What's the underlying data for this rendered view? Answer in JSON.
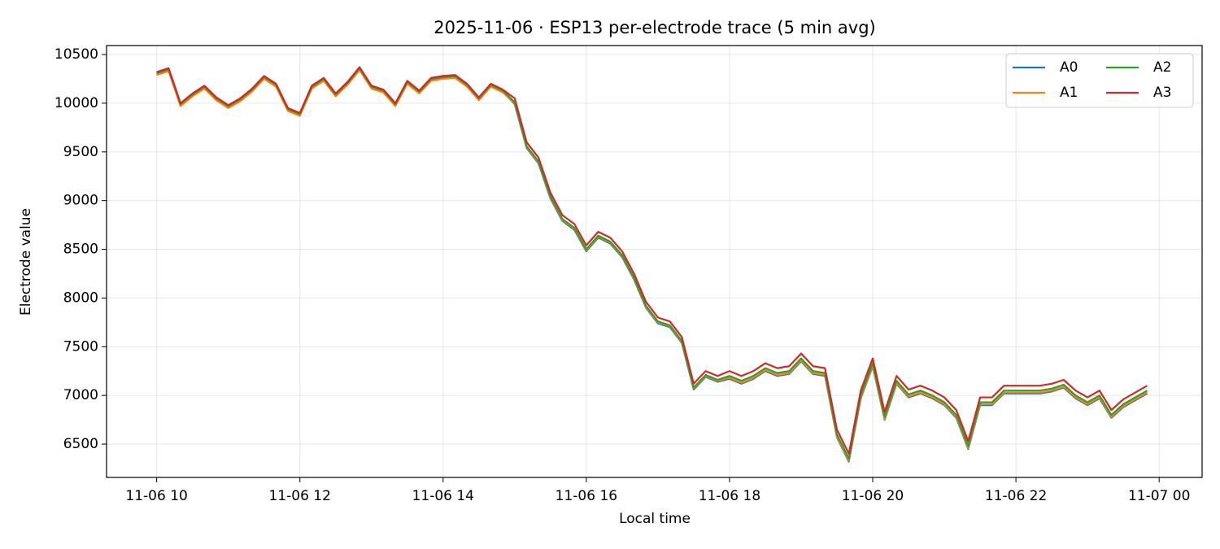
{
  "chart_data": {
    "type": "line",
    "title": "2025-11-06 · ESP13 per-electrode trace (5 min avg)",
    "x_label": "Local time",
    "y_label": "Electrode value",
    "x": [
      "11-06 10:00",
      "11-06 10:10",
      "11-06 10:20",
      "11-06 10:30",
      "11-06 10:40",
      "11-06 10:50",
      "11-06 11:00",
      "11-06 11:10",
      "11-06 11:20",
      "11-06 11:30",
      "11-06 11:40",
      "11-06 11:50",
      "11-06 12:00",
      "11-06 12:10",
      "11-06 12:20",
      "11-06 12:30",
      "11-06 12:40",
      "11-06 12:50",
      "11-06 13:00",
      "11-06 13:10",
      "11-06 13:20",
      "11-06 13:30",
      "11-06 13:40",
      "11-06 13:50",
      "11-06 14:00",
      "11-06 14:10",
      "11-06 14:20",
      "11-06 14:30",
      "11-06 14:40",
      "11-06 14:50",
      "11-06 15:00",
      "11-06 15:10",
      "11-06 15:20",
      "11-06 15:30",
      "11-06 15:40",
      "11-06 15:50",
      "11-06 16:00",
      "11-06 16:10",
      "11-06 16:20",
      "11-06 16:30",
      "11-06 16:40",
      "11-06 16:50",
      "11-06 17:00",
      "11-06 17:10",
      "11-06 17:20",
      "11-06 17:30",
      "11-06 17:40",
      "11-06 17:50",
      "11-06 18:00",
      "11-06 18:10",
      "11-06 18:20",
      "11-06 18:30",
      "11-06 18:40",
      "11-06 18:50",
      "11-06 19:00",
      "11-06 19:10",
      "11-06 19:20",
      "11-06 19:30",
      "11-06 19:40",
      "11-06 19:50",
      "11-06 20:00",
      "11-06 20:10",
      "11-06 20:20",
      "11-06 20:30",
      "11-06 20:40",
      "11-06 20:50",
      "11-06 21:00",
      "11-06 21:10",
      "11-06 21:20",
      "11-06 21:30",
      "11-06 21:40",
      "11-06 21:50",
      "11-06 22:00",
      "11-06 22:10",
      "11-06 22:20",
      "11-06 22:30",
      "11-06 22:40",
      "11-06 22:50",
      "11-06 23:00",
      "11-06 23:10",
      "11-06 23:20",
      "11-06 23:30",
      "11-06 23:40",
      "11-06 23:50"
    ],
    "series": [
      {
        "name": "A0",
        "color": "#1f77b4",
        "values": [
          10300,
          10340,
          9980,
          10080,
          10160,
          10040,
          9960,
          10030,
          10130,
          10260,
          10180,
          9930,
          9880,
          10160,
          10240,
          10080,
          10200,
          10350,
          10160,
          10120,
          9980,
          10210,
          10110,
          10240,
          10260,
          10270,
          10180,
          10040,
          10180,
          10120,
          9990,
          9540,
          9380,
          9020,
          8790,
          8700,
          8480,
          8620,
          8560,
          8420,
          8190,
          7900,
          7740,
          7700,
          7540,
          7060,
          7190,
          7140,
          7170,
          7120,
          7170,
          7250,
          7200,
          7220,
          7350,
          7220,
          7200,
          6570,
          6320,
          6970,
          7300,
          6750,
          7120,
          6980,
          7020,
          6970,
          6900,
          6770,
          6450,
          6900,
          6900,
          7020,
          7020,
          7020,
          7020,
          7040,
          7080,
          6970,
          6900,
          6970,
          6770,
          6880,
          6950,
          7020
        ]
      },
      {
        "name": "A1",
        "color": "#ff7f0e",
        "values": [
          10290,
          10330,
          9970,
          10070,
          10150,
          10030,
          9950,
          10020,
          10120,
          10250,
          10170,
          9920,
          9870,
          10150,
          10230,
          10070,
          10190,
          10340,
          10150,
          10110,
          9970,
          10200,
          10100,
          10230,
          10250,
          10260,
          10170,
          10030,
          10170,
          10110,
          10000,
          9550,
          9390,
          9030,
          8800,
          8710,
          8490,
          8630,
          8570,
          8430,
          8200,
          7910,
          7750,
          7710,
          7550,
          7070,
          7200,
          7150,
          7180,
          7130,
          7180,
          7260,
          7210,
          7230,
          7360,
          7230,
          7210,
          6580,
          6330,
          6980,
          7310,
          6760,
          7130,
          6990,
          7030,
          6980,
          6910,
          6780,
          6460,
          6910,
          6910,
          7030,
          7030,
          7030,
          7030,
          7050,
          7090,
          6980,
          6910,
          6980,
          6780,
          6890,
          6960,
          7030
        ]
      },
      {
        "name": "A2",
        "color": "#2ca02c",
        "values": [
          10310,
          10350,
          9990,
          10090,
          10170,
          10050,
          9970,
          10040,
          10140,
          10270,
          10190,
          9940,
          9890,
          10170,
          10250,
          10090,
          10210,
          10360,
          10170,
          10130,
          9990,
          10220,
          10120,
          10250,
          10270,
          10280,
          10190,
          10050,
          10190,
          10130,
          10010,
          9560,
          9400,
          9040,
          8810,
          8720,
          8500,
          8640,
          8580,
          8440,
          8210,
          7920,
          7760,
          7720,
          7560,
          7080,
          7210,
          7160,
          7200,
          7150,
          7200,
          7280,
          7230,
          7250,
          7380,
          7250,
          7230,
          6600,
          6350,
          7000,
          7330,
          6780,
          7150,
          7010,
          7050,
          7000,
          6930,
          6800,
          6480,
          6930,
          6930,
          7050,
          7050,
          7050,
          7050,
          7070,
          7110,
          7000,
          6930,
          7000,
          6800,
          6910,
          6980,
          7050
        ]
      },
      {
        "name": "A3",
        "color": "#d62728",
        "values": [
          10320,
          10360,
          10000,
          10100,
          10180,
          10060,
          9980,
          10050,
          10150,
          10280,
          10200,
          9950,
          9900,
          10180,
          10260,
          10100,
          10220,
          10370,
          10180,
          10140,
          10000,
          10230,
          10130,
          10260,
          10280,
          10290,
          10200,
          10060,
          10200,
          10140,
          10050,
          9600,
          9440,
          9080,
          8850,
          8760,
          8540,
          8680,
          8620,
          8480,
          8250,
          7960,
          7800,
          7760,
          7600,
          7120,
          7250,
          7200,
          7250,
          7200,
          7250,
          7330,
          7280,
          7300,
          7430,
          7300,
          7280,
          6650,
          6400,
          7050,
          7380,
          6830,
          7200,
          7060,
          7100,
          7050,
          6980,
          6850,
          6530,
          6980,
          6980,
          7100,
          7100,
          7100,
          7100,
          7120,
          7160,
          7050,
          6980,
          7050,
          6850,
          6960,
          7030,
          7100
        ]
      }
    ],
    "xlim": [
      "11-06 09:18",
      "11-07 00:36"
    ],
    "xticks": [
      {
        "value": "11-06 10:00",
        "label": "11-06 10"
      },
      {
        "value": "11-06 12:00",
        "label": "11-06 12"
      },
      {
        "value": "11-06 14:00",
        "label": "11-06 14"
      },
      {
        "value": "11-06 16:00",
        "label": "11-06 16"
      },
      {
        "value": "11-06 18:00",
        "label": "11-06 18"
      },
      {
        "value": "11-06 20:00",
        "label": "11-06 20"
      },
      {
        "value": "11-06 22:00",
        "label": "11-06 22"
      },
      {
        "value": "11-07 00:00",
        "label": "11-07 00"
      }
    ],
    "ylim": [
      6158,
      10592
    ],
    "yticks": [
      6500,
      7000,
      7500,
      8000,
      8500,
      9000,
      9500,
      10000,
      10500
    ],
    "grid": true,
    "legend": "upper right",
    "legend_columns": 2
  }
}
